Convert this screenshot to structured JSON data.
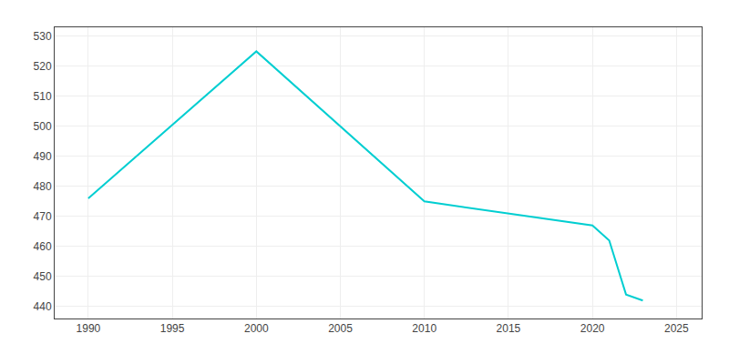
{
  "chart_data": {
    "type": "line",
    "x": [
      1990,
      2000,
      2010,
      2020,
      2021,
      2022,
      2023
    ],
    "values": [
      476,
      525,
      475,
      467,
      462,
      444,
      442
    ],
    "color": "#00CED1",
    "xlim": [
      1988,
      2026.5
    ],
    "xticks": [
      1990,
      1995,
      2000,
      2005,
      2010,
      2015,
      2020,
      2025
    ],
    "ylim": [
      436,
      533
    ],
    "yticks": [
      440,
      450,
      460,
      470,
      480,
      490,
      500,
      510,
      520,
      530
    ],
    "grid": true
  }
}
